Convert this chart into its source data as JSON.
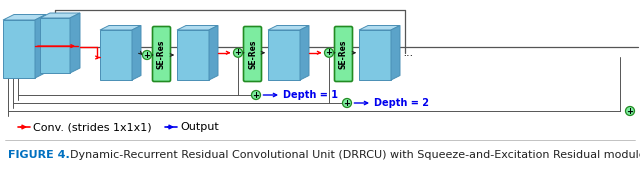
{
  "figure_caption_bold": "FIGURE 4.",
  "figure_caption_text": "   Dynamic-Recurrent Residual Convolutional Unit (DRRCU) with Squeeze-and-Excitation Residual module.",
  "legend_red_label": "Conv. (strides 1x1x1)",
  "legend_blue_label": "Output",
  "caption_color": "#0070C0",
  "cube_face_color": "#7EC8E3",
  "cube_edge_color": "#4A8FB5",
  "cube_top_color": "#B0DCF0",
  "cube_side_color": "#5BA3C9",
  "seres_face_color": "#7DECA0",
  "seres_edge_color": "#228B22",
  "arrow_red": "#FF0000",
  "arrow_blue": "#0000EE",
  "arrow_black": "#222222",
  "plus_circle_color": "#7DECA0",
  "plus_circle_edge": "#228B22",
  "depth_text_color": "#0000EE",
  "background_color": "#FFFFFF",
  "line_color": "#555555",
  "caption_text_color": "#222222"
}
